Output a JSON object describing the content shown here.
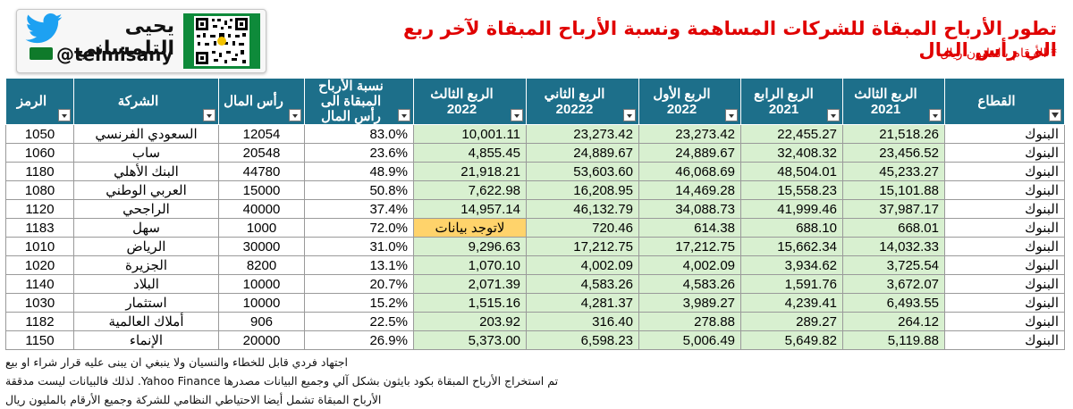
{
  "brand": {
    "name": "يحيى التلمساني",
    "handle": "@telmisany",
    "icon": "twitter-bird-icon"
  },
  "title": "تطور الأرباح المبقاة للشركات المساهمة ونسبة الأرباح المبقاة لآخر ربع الى رأس المال",
  "subtitle": "* الأرقام بالمليون ريال",
  "table": {
    "headers": {
      "symbol": "الرمز",
      "company": "الشركة",
      "capital": "رأس المال",
      "ratio": "نسبة الأرباح المبقاة الى رأس المال",
      "q3_2022": "الربع الثالث 2022",
      "q2_2022": "الربع الثاني 20222",
      "q1_2022": "الربع الأول 2022",
      "q4_2021": "الربع الرابع 2021",
      "q3_2021": "الربع الثالث 2021",
      "sector": "القطاع"
    },
    "rows": [
      {
        "symbol": "1050",
        "company": "السعودي الفرنسي",
        "capital": "12054",
        "ratio": "83.0%",
        "q3_2022": "10,001.11",
        "q2_2022": "23,273.42",
        "q1_2022": "23,273.42",
        "q4_2021": "22,455.27",
        "q3_2021": "21,518.26",
        "sector": "البنوك"
      },
      {
        "symbol": "1060",
        "company": "ساب",
        "capital": "20548",
        "ratio": "23.6%",
        "q3_2022": "4,855.45",
        "q2_2022": "24,889.67",
        "q1_2022": "24,889.67",
        "q4_2021": "32,408.32",
        "q3_2021": "23,456.52",
        "sector": "البنوك"
      },
      {
        "symbol": "1180",
        "company": "البنك الأهلي",
        "capital": "44780",
        "ratio": "48.9%",
        "q3_2022": "21,918.21",
        "q2_2022": "53,603.60",
        "q1_2022": "46,068.69",
        "q4_2021": "48,504.01",
        "q3_2021": "45,233.27",
        "sector": "البنوك"
      },
      {
        "symbol": "1080",
        "company": "العربي الوطني",
        "capital": "15000",
        "ratio": "50.8%",
        "q3_2022": "7,622.98",
        "q2_2022": "16,208.95",
        "q1_2022": "14,469.28",
        "q4_2021": "15,558.23",
        "q3_2021": "15,101.88",
        "sector": "البنوك"
      },
      {
        "symbol": "1120",
        "company": "الراجحي",
        "capital": "40000",
        "ratio": "37.4%",
        "q3_2022": "14,957.14",
        "q2_2022": "46,132.79",
        "q1_2022": "34,088.73",
        "q4_2021": "41,999.46",
        "q3_2021": "37,987.17",
        "sector": "البنوك"
      },
      {
        "symbol": "1183",
        "company": "سهل",
        "capital": "1000",
        "ratio": "72.0%",
        "q3_2022": "لاتوجد بيانات",
        "q2_2022": "720.46",
        "q1_2022": "614.38",
        "q4_2021": "688.10",
        "q3_2021": "668.01",
        "sector": "البنوك"
      },
      {
        "symbol": "1010",
        "company": "الرياض",
        "capital": "30000",
        "ratio": "31.0%",
        "q3_2022": "9,296.63",
        "q2_2022": "17,212.75",
        "q1_2022": "17,212.75",
        "q4_2021": "15,662.34",
        "q3_2021": "14,032.33",
        "sector": "البنوك"
      },
      {
        "symbol": "1020",
        "company": "الجزيرة",
        "capital": "8200",
        "ratio": "13.1%",
        "q3_2022": "1,070.10",
        "q2_2022": "4,002.09",
        "q1_2022": "4,002.09",
        "q4_2021": "3,934.62",
        "q3_2021": "3,725.54",
        "sector": "البنوك"
      },
      {
        "symbol": "1140",
        "company": "البلاد",
        "capital": "10000",
        "ratio": "20.7%",
        "q3_2022": "2,071.39",
        "q2_2022": "4,583.26",
        "q1_2022": "4,583.26",
        "q4_2021": "1,591.76",
        "q3_2021": "3,672.07",
        "sector": "البنوك"
      },
      {
        "symbol": "1030",
        "company": "استثمار",
        "capital": "10000",
        "ratio": "15.2%",
        "q3_2022": "1,515.16",
        "q2_2022": "4,281.37",
        "q1_2022": "3,989.27",
        "q4_2021": "4,239.41",
        "q3_2021": "6,493.55",
        "sector": "البنوك"
      },
      {
        "symbol": "1182",
        "company": "أملاك العالمية",
        "capital": "906",
        "ratio": "22.5%",
        "q3_2022": "203.92",
        "q2_2022": "316.40",
        "q1_2022": "278.88",
        "q4_2021": "289.27",
        "q3_2021": "264.12",
        "sector": "البنوك"
      },
      {
        "symbol": "1150",
        "company": "الإنماء",
        "capital": "20000",
        "ratio": "26.9%",
        "q3_2022": "5,373.00",
        "q2_2022": "6,598.23",
        "q1_2022": "5,006.49",
        "q4_2021": "5,649.82",
        "q3_2021": "5,119.88",
        "sector": "البنوك"
      }
    ]
  },
  "notes": [
    "اجتهاد فردي قابل للخطاء والنسيان ولا ينبغي ان يبنى عليه قرار شراء او بيع",
    "تم استخراج الأرباح المبقاة بكود بايثون بشكل آلي وجميع البيانات مصدرها Yahoo Finance. لذلك فالبيانات ليست مدققة",
    "الأرباح المبقاة تشمل أيضا الاحتياطي النظامي للشركة وجميع الأرقام بالمليون ريال"
  ],
  "colors": {
    "header_bg": "#1d6f8a",
    "title_red": "#e00000",
    "quarter_cell_green": "#d8f0d0",
    "no_data_highlight": "#ffd36b"
  }
}
